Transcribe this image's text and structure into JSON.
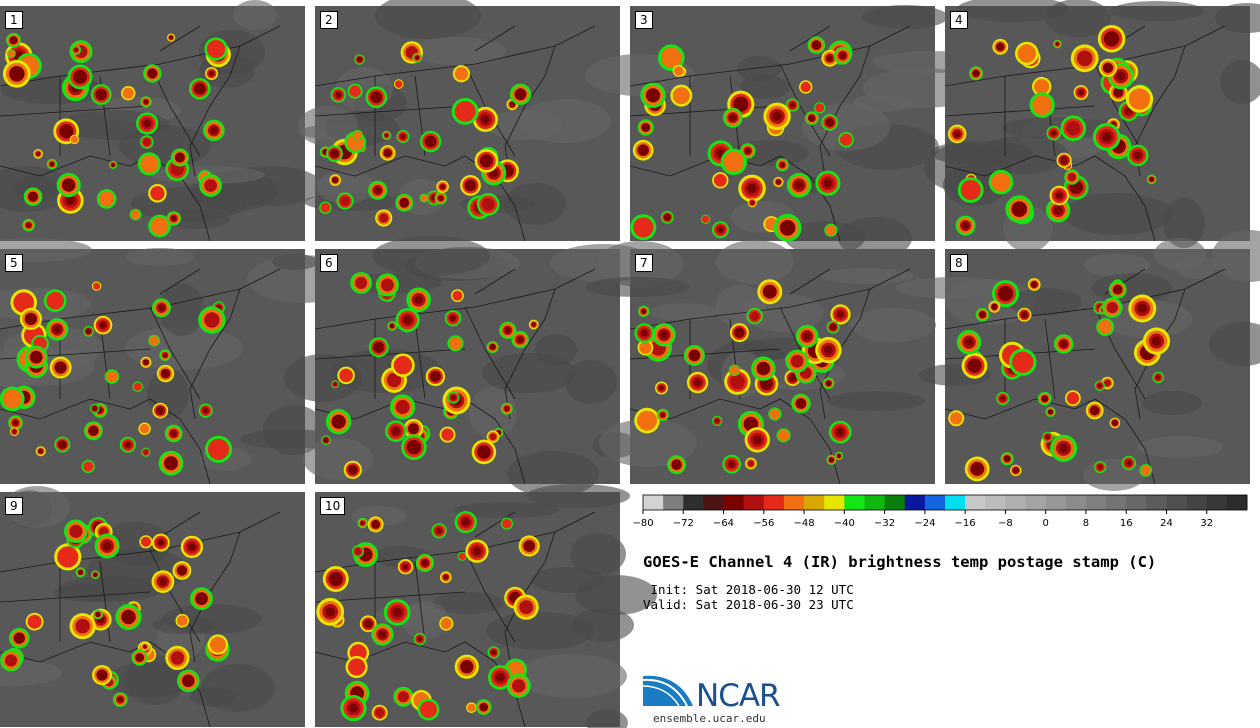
{
  "panels": [
    {
      "label": "1"
    },
    {
      "label": "2"
    },
    {
      "label": "3"
    },
    {
      "label": "4"
    },
    {
      "label": "5"
    },
    {
      "label": "6"
    },
    {
      "label": "7"
    },
    {
      "label": "8"
    },
    {
      "label": "9"
    },
    {
      "label": "10"
    }
  ],
  "colorbar": {
    "colors": [
      "#d3d3d3",
      "#7f7f7f",
      "#2e2e2e",
      "#4b1515",
      "#7a0000",
      "#b01010",
      "#e52a1a",
      "#f2700f",
      "#d9a800",
      "#e6e600",
      "#14e614",
      "#10b810",
      "#0a800a",
      "#0a18a0",
      "#1466e0",
      "#00e0f0",
      "#c8c8c8",
      "#bcbcbc",
      "#b0b0b0",
      "#a4a4a4",
      "#989898",
      "#8c8c8c",
      "#808080",
      "#747474",
      "#686868",
      "#5c5c5c",
      "#505050",
      "#444444",
      "#383838",
      "#2c2c2c"
    ],
    "tick_labels": [
      "−80",
      "−72",
      "−64",
      "−56",
      "−48",
      "−40",
      "−32",
      "−24",
      "−16",
      "−8",
      "0",
      "8",
      "16",
      "24",
      "32"
    ]
  },
  "title": "GOES-E Channel 4 (IR) brightness temp postage stamp (C)",
  "init_line": " Init: Sat 2018-06-30 12 UTC",
  "valid_line": "Valid: Sat 2018-06-30 23 UTC",
  "logo": {
    "text": "NCAR",
    "url": "ensemble.ucar.edu",
    "brand_color": "#1b4f8f",
    "swoosh_color": "#1a7dc4"
  }
}
